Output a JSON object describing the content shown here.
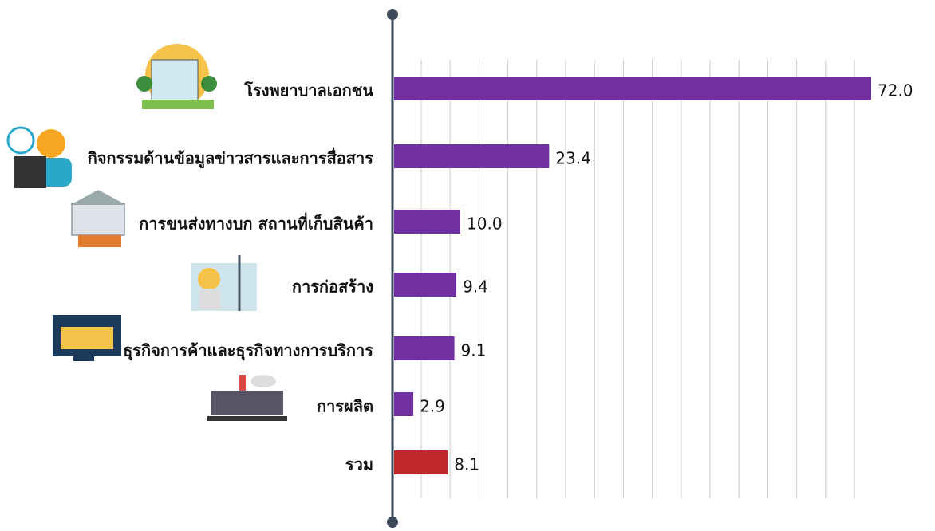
{
  "chart_data": {
    "type": "bar",
    "orientation": "horizontal",
    "categories": [
      "โรงพยาบาลเอกชน",
      "กิจกรรมด้านข้อมูลข่าวสารและการสื่อสาร",
      "การขนส่งทางบก สถานที่เก็บสินค้า",
      "การก่อสร้าง",
      "ธุรกิจการค้าและธุรกิจทางการบริการ",
      "การผลิต",
      "รวม"
    ],
    "values": [
      72.0,
      23.4,
      10.0,
      9.4,
      9.1,
      2.9,
      8.1
    ],
    "value_labels": [
      "72.0",
      "23.4",
      "10.0",
      "9.4",
      "9.1",
      "2.9",
      "8.1"
    ],
    "colors": [
      "#7030a0",
      "#7030a0",
      "#7030a0",
      "#7030a0",
      "#7030a0",
      "#7030a0",
      "#c0272d"
    ]
  }
}
